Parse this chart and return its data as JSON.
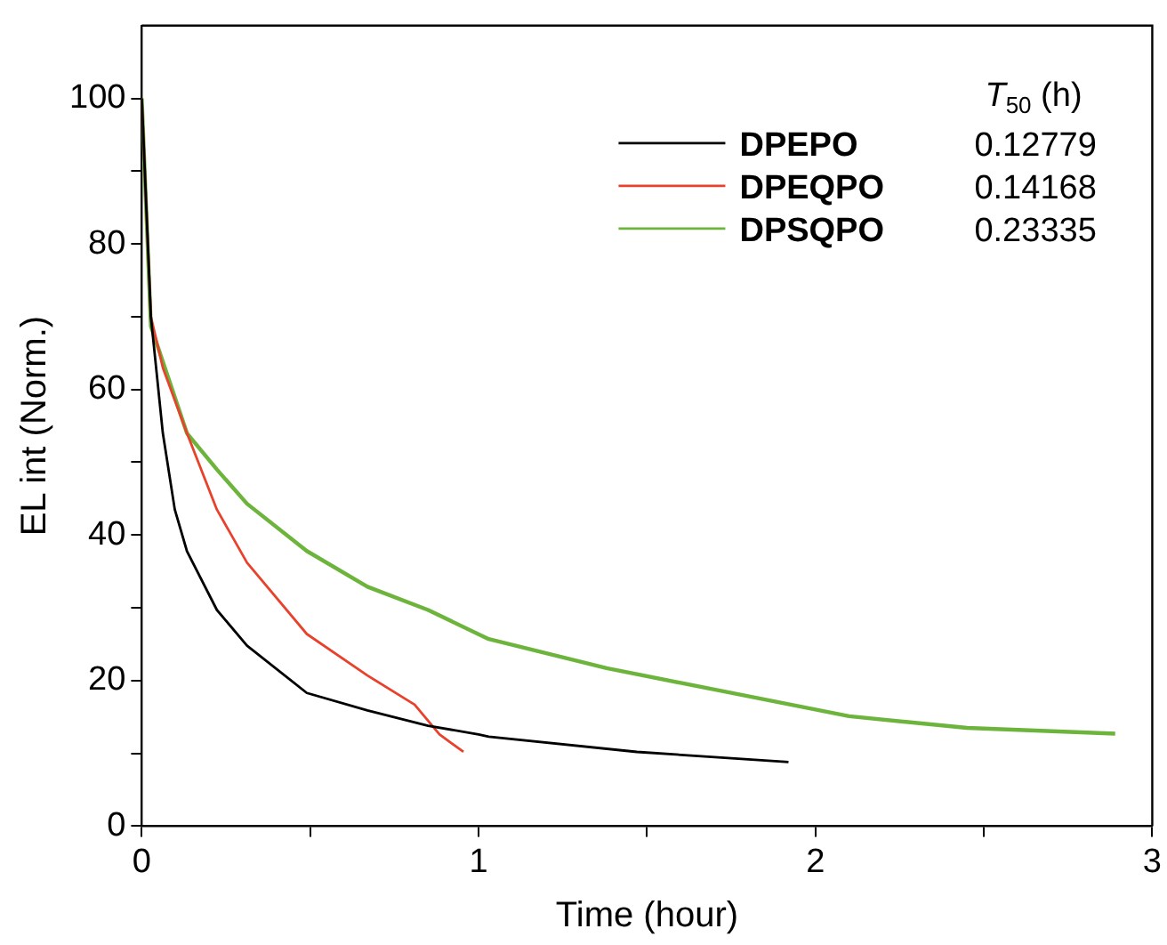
{
  "chart_data": {
    "type": "line",
    "xlabel": "Time (hour)",
    "ylabel": "EL int (Norm.)",
    "legend_title": "T$_{50}$ (h)",
    "legend": "top right",
    "grid": false,
    "marker": "none",
    "line_style": "solid",
    "xlim": [
      0,
      3
    ],
    "xticks": [
      0,
      {
        "value": 0.5,
        "label": null
      },
      1,
      {
        "value": 1.5,
        "label": null
      },
      2,
      {
        "value": 2.5,
        "label": null
      },
      3
    ],
    "ylim": [
      0,
      110
    ],
    "yticks": [
      0,
      {
        "value": 10,
        "label": null
      },
      20,
      {
        "value": 30,
        "label": null
      },
      40,
      {
        "value": 50,
        "label": null
      },
      60,
      {
        "value": 70,
        "label": null
      },
      80,
      {
        "value": 90,
        "label": null
      },
      100
    ],
    "annotations": [
      "0.12779",
      "0.14168",
      "0.23335"
    ],
    "series": [
      {
        "name": "DPEPO",
        "color": "#000000",
        "x": [
          0,
          0.027,
          0.0625,
          0.098,
          0.134,
          0.223,
          0.3125,
          0.49,
          0.67,
          0.85,
          1.0,
          1.03,
          1.47,
          1.92
        ],
        "values": [
          100,
          70,
          54,
          43.5,
          37.8,
          29.7,
          24.8,
          18.3,
          15.9,
          13.8,
          12.6,
          12.3,
          10.2,
          8.8
        ]
      },
      {
        "name": "DPEQPO",
        "color": "#e8422c",
        "x": [
          0,
          0.027,
          0.0625,
          0.134,
          0.223,
          0.3125,
          0.49,
          0.67,
          0.81,
          0.884,
          0.955
        ],
        "values": [
          100,
          70,
          63,
          54,
          43.5,
          36.2,
          26.4,
          20.7,
          16.7,
          12.6,
          10.2
        ]
      },
      {
        "name": "DPSQPO",
        "color": "#6cb43c",
        "x": [
          0,
          0.027,
          0.134,
          0.223,
          0.3125,
          0.49,
          0.67,
          0.85,
          1.03,
          1.38,
          1.74,
          2.1,
          2.45,
          2.89
        ],
        "values": [
          100,
          68.7,
          54,
          49,
          44.3,
          37.8,
          32.9,
          29.7,
          25.7,
          21.7,
          18.4,
          15.1,
          13.5,
          12.7
        ]
      }
    ]
  }
}
